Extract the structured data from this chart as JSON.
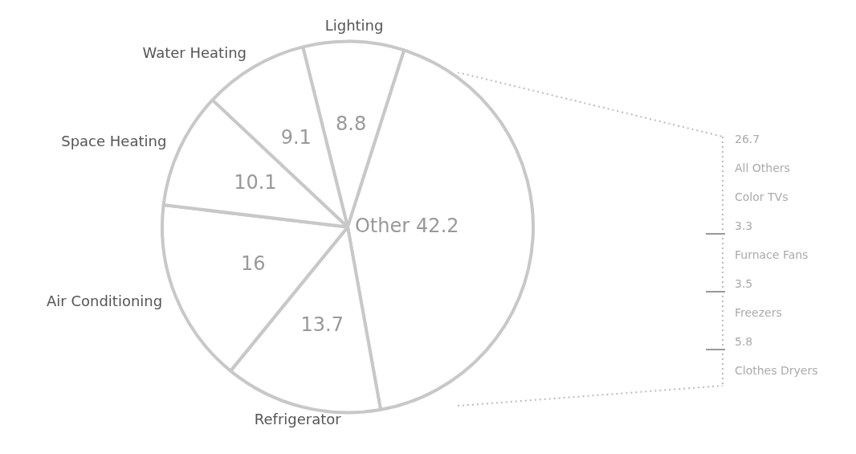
{
  "chart_data": {
    "type": "pie",
    "categories": [
      "Lighting",
      "Other",
      "Refrigerator",
      "Air Conditioning",
      "Space Heating",
      "Water Heating"
    ],
    "values": [
      8.8,
      42.2,
      13.7,
      16,
      10.1,
      9.1
    ],
    "colors": [
      "#ffffff",
      "#ffffff",
      "#ffffff",
      "#ffffff",
      "#ffffff",
      "#ffffff"
    ],
    "data_labels": true,
    "legend": false,
    "annotations": [
      "26.7",
      "All Others",
      "Color TVs",
      "3.3",
      "Furnace Fans",
      "3.5",
      "Freezers",
      "5.8",
      "Clothes Dryers"
    ]
  }
}
